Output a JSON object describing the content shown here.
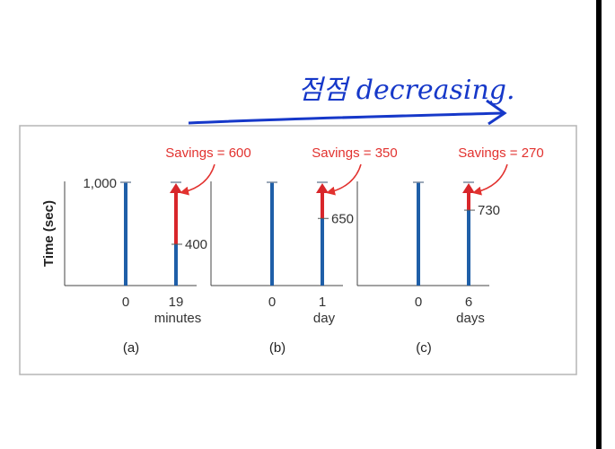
{
  "annotation": {
    "handwritten_text": "점점 decreasing."
  },
  "chart_data": {
    "type": "bar",
    "ylabel": "Time (sec)",
    "y_tick_label": "1,000",
    "ylim": [
      0,
      1000
    ],
    "panels": [
      {
        "panel_label": "(a)",
        "categories": [
          "0",
          "19"
        ],
        "unit": "minutes",
        "baseline": 1000,
        "relearn_time": 400,
        "value_label": "400",
        "savings": 600,
        "savings_label": "Savings = 600"
      },
      {
        "panel_label": "(b)",
        "categories": [
          "0",
          "1"
        ],
        "unit": "day",
        "baseline": 1000,
        "relearn_time": 650,
        "value_label": "650",
        "savings": 350,
        "savings_label": "Savings = 350"
      },
      {
        "panel_label": "(c)",
        "categories": [
          "0",
          "6"
        ],
        "unit": "days",
        "baseline": 1000,
        "relearn_time": 730,
        "value_label": "730",
        "savings": 270,
        "savings_label": "Savings = 270"
      }
    ],
    "colors": {
      "bar": "#1f5fa8",
      "savings": "#d8262b",
      "annotation": "#e2322f",
      "handwriting": "#1638c9"
    }
  }
}
